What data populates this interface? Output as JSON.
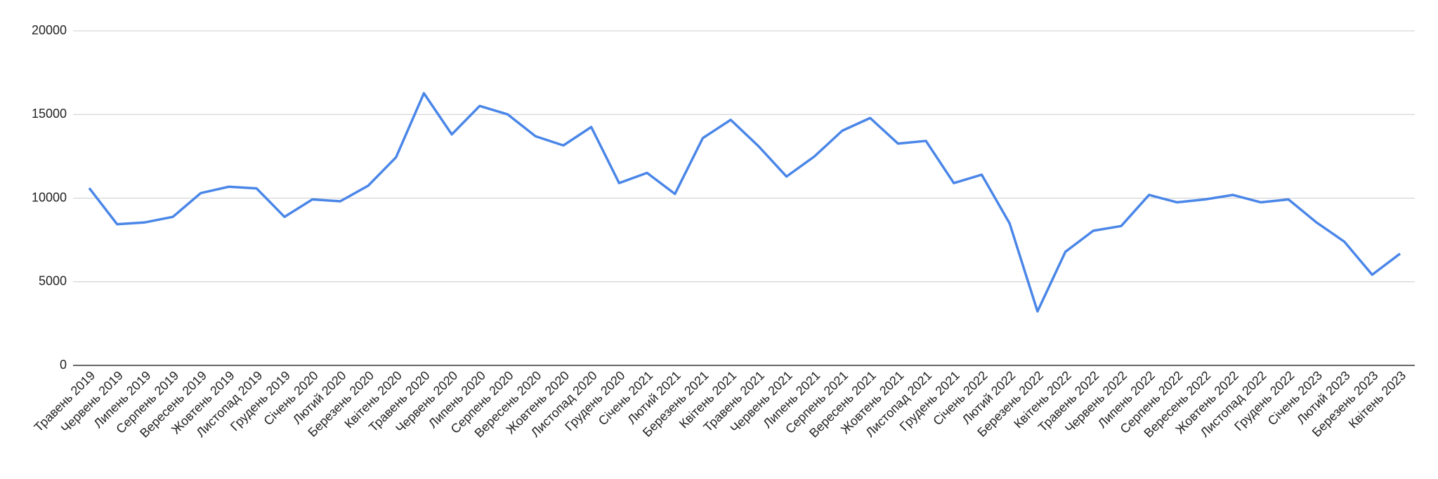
{
  "chart_data": {
    "type": "line",
    "categories": [
      "Травень 2019",
      "Червень 2019",
      "Липень 2019",
      "Серпень 2019",
      "Вересень 2019",
      "Жовтень 2019",
      "Листопад 2019",
      "Грудень 2019",
      "Січень 2020",
      "Лютий 2020",
      "Березень 2020",
      "Квітень 2020",
      "Травень 2020",
      "Червень 2020",
      "Липень 2020",
      "Серпень 2020",
      "Вересень 2020",
      "Жовтень 2020",
      "Листопад 2020",
      "Грудень 2020",
      "Січень 2021",
      "Лютий 2021",
      "Березень 2021",
      "Квітень 2021",
      "Травень 2021",
      "Червень 2021",
      "Липень 2021",
      "Серпень 2021",
      "Вересень 2021",
      "Жовтень 2021",
      "Листопад 2021",
      "Грудень 2021",
      "Січень 2022",
      "Лютий 2022",
      "Березень 2022",
      "Квітень 2022",
      "Травень 2022",
      "Червень 2022",
      "Липень 2022",
      "Серпень 2022",
      "Вересень 2022",
      "Жовтень 2022",
      "Листопад 2022",
      "Грудень 2022",
      "Січень 2023",
      "Лютий 2023",
      "Березень 2023",
      "Квітень 2023"
    ],
    "values": [
      10600,
      8440,
      8550,
      8880,
      10300,
      10680,
      10580,
      8880,
      9920,
      9810,
      10740,
      12440,
      16270,
      13810,
      15510,
      15010,
      13700,
      13150,
      14250,
      10900,
      11510,
      10250,
      13590,
      14680,
      13100,
      11290,
      12490,
      14030,
      14790,
      13260,
      13420,
      10900,
      11400,
      8490,
      3230,
      6790,
      8050,
      8330,
      10190,
      9750,
      9920,
      10190,
      9750,
      9920,
      8550,
      7400,
      5420,
      6680
    ],
    "color": "#4a86e8",
    "ylim": [
      0,
      20000
    ],
    "yticks": [
      0,
      5000,
      10000,
      15000,
      20000
    ],
    "grid": true
  }
}
